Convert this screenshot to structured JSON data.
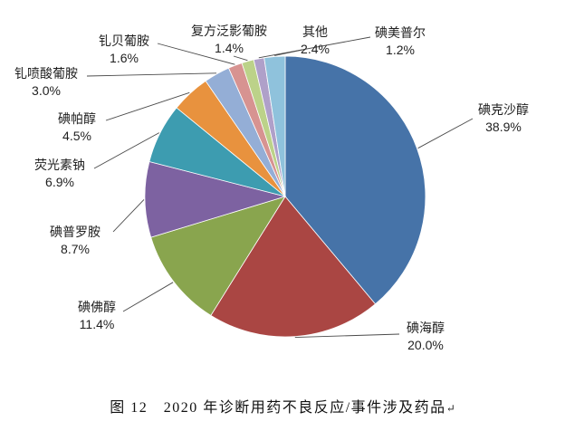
{
  "caption": {
    "text": "图 12　2020 年诊断用药不良反应/事件涉及药品",
    "return_mark": "↵"
  },
  "chart_data": {
    "type": "pie",
    "title": "图 12　2020 年诊断用药不良反应/事件涉及药品",
    "unit": "%",
    "start_angle_deg": 0,
    "direction": "clockwise",
    "legend": "none",
    "labels_position": "outside-end-with-leader-lines",
    "slices": [
      {
        "name": "碘克沙醇",
        "value": 38.9,
        "pct_label": "38.9%",
        "color": "#4673A8"
      },
      {
        "name": "碘海醇",
        "value": 20.0,
        "pct_label": "20.0%",
        "color": "#AA4643"
      },
      {
        "name": "碘佛醇",
        "value": 11.4,
        "pct_label": "11.4%",
        "color": "#89A54E"
      },
      {
        "name": "碘普罗胺",
        "value": 8.7,
        "pct_label": "8.7%",
        "color": "#7D62A1"
      },
      {
        "name": "荧光素钠",
        "value": 6.9,
        "pct_label": "6.9%",
        "color": "#3D9CB0"
      },
      {
        "name": "碘帕醇",
        "value": 4.5,
        "pct_label": "4.5%",
        "color": "#E8923E"
      },
      {
        "name": "钆喷酸葡胺",
        "value": 3.0,
        "pct_label": "3.0%",
        "color": "#94AED6"
      },
      {
        "name": "钆贝葡胺",
        "value": 1.6,
        "pct_label": "1.6%",
        "color": "#D79391"
      },
      {
        "name": "复方泛影葡胺",
        "value": 1.4,
        "pct_label": "1.4%",
        "color": "#BCD289"
      },
      {
        "name": "碘美普尔",
        "value": 1.2,
        "pct_label": "1.2%",
        "color": "#AFA0C9"
      },
      {
        "name": "其他",
        "value": 2.4,
        "pct_label": "2.4%",
        "color": "#8FC2DC"
      }
    ]
  }
}
